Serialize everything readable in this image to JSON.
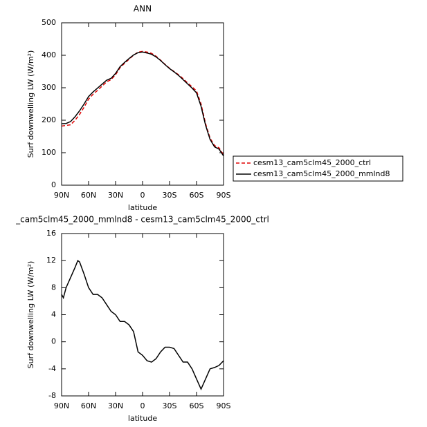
{
  "chart_data": [
    {
      "type": "line",
      "title": "ANN",
      "x_label": "latitude",
      "y_label": "Surf downwelling LW (W/m²)",
      "x": [
        90,
        85,
        80,
        75,
        70,
        65,
        60,
        55,
        50,
        45,
        40,
        35,
        30,
        25,
        20,
        15,
        10,
        5,
        0,
        -5,
        -10,
        -15,
        -20,
        -25,
        -30,
        -35,
        -40,
        -45,
        -50,
        -55,
        -60,
        -65,
        -70,
        -75,
        -80,
        -85,
        -90
      ],
      "xlim": [
        90,
        -90
      ],
      "xticks": [
        {
          "value": 90,
          "label": "90N"
        },
        {
          "value": 60,
          "label": "60N"
        },
        {
          "value": 30,
          "label": "30N"
        },
        0,
        {
          "value": -30,
          "label": "30S"
        },
        {
          "value": -60,
          "label": "60S"
        },
        {
          "value": -90,
          "label": "90S"
        }
      ],
      "ylim": [
        0,
        500
      ],
      "yticks": [
        0,
        100,
        200,
        300,
        400,
        500
      ],
      "legend": "right",
      "series": [
        {
          "name": "cesm13_cam5clm45_2000_ctrl",
          "color": "#e00000",
          "line_style": "dashed",
          "values": [
            182,
            184,
            186,
            200,
            218,
            240,
            265,
            280,
            292,
            305,
            318,
            325,
            340,
            362,
            375,
            388,
            400,
            410,
            412,
            410,
            406,
            397,
            385,
            372,
            360,
            350,
            340,
            328,
            315,
            303,
            290,
            250,
            190,
            145,
            122,
            115,
            93
          ]
        },
        {
          "name": "cesm13_cam5clm45_2000_mmlnd8",
          "color": "#000000",
          "line_style": "solid",
          "values": [
            189,
            190,
            196,
            211,
            229,
            250,
            273,
            287,
            299,
            311,
            323,
            329,
            344,
            365,
            378,
            390,
            401,
            408,
            410,
            407,
            403,
            395,
            384,
            371,
            359,
            349,
            338,
            325,
            312,
            299,
            284,
            243,
            185,
            141,
            118,
            111,
            90
          ]
        }
      ]
    },
    {
      "type": "line",
      "title": "_cam5clm45_2000_mmlnd8 - cesm13_cam5clm45_2000_ctrl",
      "x_label": "latitude",
      "y_label": "Surf downwelling LW (W/m²)",
      "x": [
        90,
        88,
        85,
        80,
        75,
        72,
        70,
        65,
        60,
        55,
        50,
        45,
        40,
        35,
        30,
        25,
        20,
        15,
        10,
        5,
        0,
        -5,
        -10,
        -15,
        -20,
        -25,
        -30,
        -35,
        -40,
        -45,
        -50,
        -55,
        -60,
        -65,
        -70,
        -75,
        -80,
        -85,
        -90
      ],
      "xlim": [
        90,
        -90
      ],
      "xticks": [
        {
          "value": 90,
          "label": "90N"
        },
        {
          "value": 60,
          "label": "60N"
        },
        {
          "value": 30,
          "label": "30N"
        },
        0,
        {
          "value": -30,
          "label": "30S"
        },
        {
          "value": -60,
          "label": "60S"
        },
        {
          "value": -90,
          "label": "90S"
        }
      ],
      "ylim": [
        -8,
        16
      ],
      "yticks": [
        -8,
        -4,
        0,
        4,
        8,
        12,
        16
      ],
      "series": [
        {
          "color": "#000000",
          "line_style": "solid",
          "values": [
            7,
            6.5,
            8,
            9.5,
            11,
            12,
            11.8,
            10,
            8,
            7,
            7,
            6.5,
            5.5,
            4.5,
            4,
            3,
            3,
            2.5,
            1.5,
            -1.5,
            -2,
            -2.8,
            -3,
            -2.5,
            -1.5,
            -0.8,
            -0.8,
            -1,
            -2,
            -3,
            -3,
            -4,
            -5.5,
            -7,
            -5.5,
            -4,
            -3.8,
            -3.5,
            -2.8
          ]
        }
      ]
    }
  ]
}
